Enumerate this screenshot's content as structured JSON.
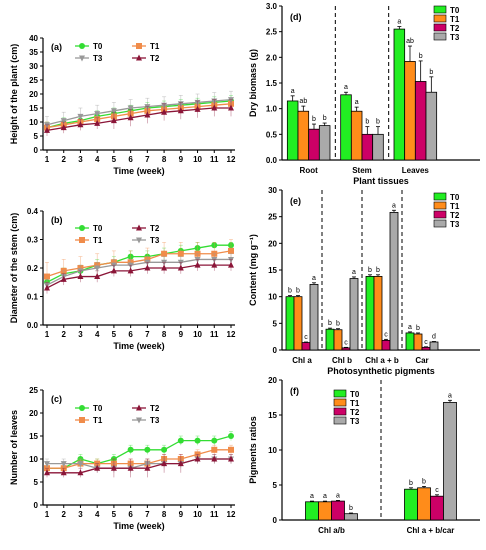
{
  "figure": {
    "colors": {
      "T0": "#33dd33",
      "T1": "#f08c4a",
      "T2": "#8b1538",
      "T3": "#999999"
    },
    "bar_colors": {
      "T0": "#22ee22",
      "T1": "#ff8c1a",
      "T2": "#cc0066",
      "T3": "#aaaaaa"
    }
  },
  "chart_data": [
    {
      "id": "a",
      "type": "line",
      "panel_label": "(a)",
      "xlabel": "Time (week)",
      "ylabel": "Height of the plant (cm)",
      "x": [
        1,
        2,
        3,
        4,
        5,
        6,
        7,
        8,
        9,
        10,
        11,
        12
      ],
      "ylim": [
        0,
        40
      ],
      "yticks": [
        0,
        5,
        10,
        15,
        20,
        25,
        30,
        35,
        40
      ],
      "legend": [
        "T0",
        "T1",
        "T3",
        "T2"
      ],
      "series": [
        {
          "name": "T0",
          "marker": "circle",
          "values": [
            8,
            9.5,
            10.5,
            12,
            13,
            14,
            15,
            15.5,
            16,
            16.5,
            17,
            17.5
          ],
          "err": [
            2,
            2,
            2,
            2,
            2,
            2,
            2,
            2,
            2,
            2,
            2,
            2
          ]
        },
        {
          "name": "T1",
          "marker": "square",
          "values": [
            8,
            9,
            10,
            11,
            12,
            13,
            14,
            14.5,
            15,
            15.5,
            16,
            16.5
          ],
          "err": [
            2,
            2,
            2,
            2,
            2,
            2,
            2,
            2,
            2,
            2,
            2,
            2
          ]
        },
        {
          "name": "T3",
          "marker": "triangle-down",
          "values": [
            9,
            10.5,
            12,
            13,
            14,
            15,
            15.5,
            16,
            16.5,
            17,
            17.5,
            18
          ],
          "err": [
            3,
            3,
            3,
            3,
            3,
            3,
            3,
            3,
            3,
            3,
            3,
            3
          ]
        },
        {
          "name": "T2",
          "marker": "triangle-up",
          "values": [
            7,
            8,
            9,
            9.5,
            10.5,
            11.5,
            12.5,
            13.5,
            14,
            14.5,
            15,
            15
          ],
          "err": [
            2,
            2,
            2,
            2,
            3,
            3,
            3,
            3,
            3,
            3,
            3,
            3
          ]
        }
      ]
    },
    {
      "id": "b",
      "type": "line",
      "panel_label": "(b)",
      "xlabel": "Time (week)",
      "ylabel": "Diameter of the stem (cm)",
      "x": [
        1,
        2,
        3,
        4,
        5,
        6,
        7,
        8,
        9,
        10,
        11,
        12
      ],
      "ylim": [
        0,
        0.4
      ],
      "yticks": [
        "0.0",
        "0.1",
        "0.2",
        "0.3",
        "0.4"
      ],
      "legend": [
        "T0",
        "T2",
        "T1",
        "T3"
      ],
      "series": [
        {
          "name": "T0",
          "marker": "circle",
          "values": [
            0.15,
            0.18,
            0.19,
            0.21,
            0.22,
            0.24,
            0.24,
            0.25,
            0.26,
            0.27,
            0.28,
            0.28
          ],
          "err": [
            0.02,
            0.02,
            0.02,
            0.02,
            0.02,
            0.02,
            0.02,
            0.02,
            0.02,
            0.02,
            0.01,
            0.01
          ]
        },
        {
          "name": "T1",
          "marker": "square",
          "values": [
            0.17,
            0.19,
            0.2,
            0.21,
            0.22,
            0.22,
            0.23,
            0.25,
            0.25,
            0.25,
            0.25,
            0.26
          ],
          "err": [
            0.05,
            0.04,
            0.04,
            0.04,
            0.04,
            0.04,
            0.04,
            0.04,
            0.04,
            0.04,
            0.04,
            0.04
          ]
        },
        {
          "name": "T3",
          "marker": "triangle-down",
          "values": [
            0.14,
            0.17,
            0.19,
            0.2,
            0.21,
            0.21,
            0.22,
            0.22,
            0.22,
            0.23,
            0.23,
            0.23
          ],
          "err": [
            0.02,
            0.02,
            0.02,
            0.02,
            0.02,
            0.02,
            0.02,
            0.02,
            0.02,
            0.02,
            0.02,
            0.02
          ]
        },
        {
          "name": "T2",
          "marker": "triangle-up",
          "values": [
            0.13,
            0.16,
            0.17,
            0.17,
            0.19,
            0.19,
            0.2,
            0.2,
            0.2,
            0.21,
            0.21,
            0.21
          ],
          "err": [
            0.02,
            0.02,
            0.02,
            0.02,
            0.02,
            0.02,
            0.02,
            0.02,
            0.02,
            0.02,
            0.02,
            0.02
          ]
        }
      ]
    },
    {
      "id": "c",
      "type": "line",
      "panel_label": "(c)",
      "xlabel": "Time (week)",
      "ylabel": "Number of leaves",
      "x": [
        1,
        2,
        3,
        4,
        5,
        6,
        7,
        8,
        9,
        10,
        11,
        12
      ],
      "ylim": [
        0,
        25
      ],
      "yticks": [
        0,
        5,
        10,
        15,
        20,
        25
      ],
      "legend": [
        "T0",
        "T2",
        "T1",
        "T3"
      ],
      "series": [
        {
          "name": "T0",
          "marker": "circle",
          "values": [
            8,
            8,
            10,
            9,
            10,
            12,
            12,
            12,
            14,
            14,
            14,
            15
          ],
          "err": [
            1,
            1,
            1,
            1,
            1,
            1,
            1,
            1,
            1,
            1,
            1,
            1
          ]
        },
        {
          "name": "T1",
          "marker": "square",
          "values": [
            8,
            8,
            9,
            9,
            9,
            9,
            9,
            10,
            10,
            11,
            12,
            12
          ],
          "err": [
            1,
            1,
            1,
            1,
            1,
            1,
            1,
            1,
            1,
            1,
            1,
            1
          ]
        },
        {
          "name": "T3",
          "marker": "triangle-down",
          "values": [
            9,
            9,
            9,
            8,
            8,
            8,
            9,
            9,
            9,
            10,
            10,
            10
          ],
          "err": [
            1,
            1,
            1,
            1,
            1,
            1,
            1,
            1,
            1,
            1,
            1,
            1
          ]
        },
        {
          "name": "T2",
          "marker": "triangle-up",
          "values": [
            7,
            7,
            7,
            8,
            8,
            8,
            8,
            9,
            9,
            10,
            10,
            10
          ],
          "err": [
            1,
            1,
            1,
            1,
            2,
            2,
            2,
            2,
            2,
            1,
            1,
            1
          ]
        }
      ]
    },
    {
      "id": "d",
      "type": "bar",
      "panel_label": "(d)",
      "xlabel": "Plant tissues",
      "ylabel": "Dry biomass (g)",
      "categories": [
        "Root",
        "Stem",
        "Leaves"
      ],
      "ylim": [
        0,
        3
      ],
      "yticks": [
        "0.0",
        "0.5",
        "1.0",
        "1.5",
        "2.0",
        "2.5",
        "3.0"
      ],
      "legend": [
        "T0",
        "T1",
        "T2",
        "T3"
      ],
      "series": [
        {
          "name": "T0",
          "values": [
            1.15,
            1.27,
            2.55
          ],
          "err": [
            0.1,
            0.05,
            0.05
          ],
          "letters": [
            "a",
            "a",
            "a"
          ]
        },
        {
          "name": "T1",
          "values": [
            0.95,
            0.95,
            1.92
          ],
          "err": [
            0.1,
            0.08,
            0.3
          ],
          "letters": [
            "ab",
            "a",
            "ab"
          ]
        },
        {
          "name": "T2",
          "values": [
            0.6,
            0.5,
            1.53
          ],
          "err": [
            0.1,
            0.15,
            0.4
          ],
          "letters": [
            "b",
            "b",
            "b"
          ]
        },
        {
          "name": "T3",
          "values": [
            0.67,
            0.5,
            1.32
          ],
          "err": [
            0.05,
            0.15,
            0.3
          ],
          "letters": [
            "b",
            "b",
            "b"
          ]
        }
      ],
      "dividers_after": [
        0,
        1
      ]
    },
    {
      "id": "e",
      "type": "bar",
      "panel_label": "(e)",
      "xlabel": "Photosynthetic pigments",
      "ylabel": "Content (mg g⁻¹)",
      "categories": [
        "Chl a",
        "Chl b",
        "Chl a + b",
        "Car"
      ],
      "ylim": [
        0,
        30
      ],
      "yticks": [
        0,
        5,
        10,
        15,
        20,
        25,
        30
      ],
      "legend": [
        "T0",
        "T1",
        "T2",
        "T3"
      ],
      "series": [
        {
          "name": "T0",
          "values": [
            10,
            3.9,
            13.8,
            3.2
          ],
          "err": [
            0.2,
            0.2,
            0.3,
            0.2
          ],
          "letters": [
            "b",
            "b",
            "b",
            "a"
          ]
        },
        {
          "name": "T1",
          "values": [
            10,
            3.8,
            13.8,
            3.0
          ],
          "err": [
            0.2,
            0.2,
            0.3,
            0.2
          ],
          "letters": [
            "b",
            "b",
            "b",
            "b"
          ]
        },
        {
          "name": "T2",
          "values": [
            1.4,
            0.4,
            1.8,
            0.5
          ],
          "err": [
            0.1,
            0.1,
            0.2,
            0.1
          ],
          "letters": [
            "c",
            "c",
            "c",
            "c"
          ]
        },
        {
          "name": "T3",
          "values": [
            12.3,
            13.4,
            25.8,
            1.5
          ],
          "err": [
            0.3,
            0.3,
            0.4,
            0.1
          ],
          "letters": [
            "a",
            "a",
            "a",
            "d"
          ]
        }
      ],
      "dividers_after": [
        0,
        1,
        2
      ]
    },
    {
      "id": "f",
      "type": "bar",
      "panel_label": "(f)",
      "xlabel": "",
      "ylabel": "Pigments ratios",
      "categories": [
        "Chl a/b",
        "Chl a + b/car"
      ],
      "ylim": [
        0,
        20
      ],
      "yticks": [
        0,
        5,
        10,
        15,
        20
      ],
      "legend": [
        "T0",
        "T1",
        "T2",
        "T3"
      ],
      "series": [
        {
          "name": "T0",
          "values": [
            2.6,
            4.4
          ],
          "err": [
            0.1,
            0.2
          ],
          "letters": [
            "a",
            "b"
          ]
        },
        {
          "name": "T1",
          "values": [
            2.6,
            4.6
          ],
          "err": [
            0.1,
            0.2
          ],
          "letters": [
            "a",
            "b"
          ]
        },
        {
          "name": "T2",
          "values": [
            2.7,
            3.4
          ],
          "err": [
            0.1,
            0.2
          ],
          "letters": [
            "a",
            "c"
          ]
        },
        {
          "name": "T3",
          "values": [
            0.9,
            16.8
          ],
          "err": [
            0.1,
            0.3
          ],
          "letters": [
            "b",
            "a"
          ]
        }
      ],
      "dividers_after": [
        0
      ]
    }
  ]
}
